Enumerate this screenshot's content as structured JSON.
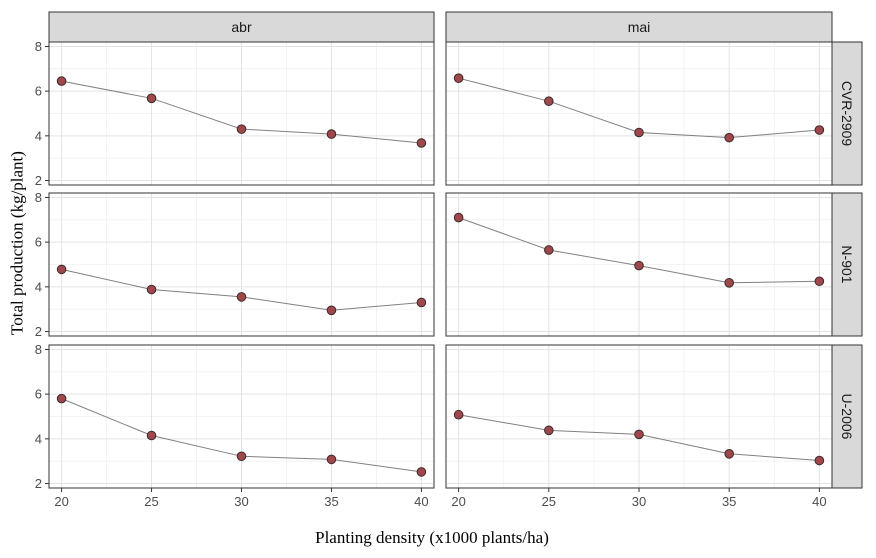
{
  "chart_data": {
    "type": "line",
    "xlabel": "Planting density (x1000 plants/ha)",
    "ylabel": "Total production (kg/plant)",
    "x": [
      20,
      25,
      30,
      35,
      40
    ],
    "x_ticks": [
      "20",
      "25",
      "30",
      "35",
      "40"
    ],
    "y_ticks": [
      "2",
      "4",
      "6",
      "8"
    ],
    "xlim": [
      19.3,
      40.7
    ],
    "ylim": [
      1.8,
      8.2
    ],
    "grid": true,
    "columns": [
      "abr",
      "mai"
    ],
    "rows": [
      "CVR-2909",
      "N-901",
      "U-2006"
    ],
    "colors": {
      "point": "#a0474c",
      "point_outline": "#3a2a2a",
      "line": "#808080",
      "strip": "#d9d9d9"
    },
    "panels": [
      {
        "row": "CVR-2909",
        "column": "abr",
        "values": [
          6.45,
          5.68,
          4.3,
          4.08,
          3.68
        ]
      },
      {
        "row": "CVR-2909",
        "column": "mai",
        "values": [
          6.58,
          5.55,
          4.15,
          3.92,
          4.26
        ]
      },
      {
        "row": "N-901",
        "column": "abr",
        "values": [
          4.78,
          3.88,
          3.55,
          2.95,
          3.3
        ]
      },
      {
        "row": "N-901",
        "column": "mai",
        "values": [
          7.1,
          5.65,
          4.95,
          4.18,
          4.25
        ]
      },
      {
        "row": "U-2006",
        "column": "abr",
        "values": [
          5.8,
          4.15,
          3.22,
          3.08,
          2.52
        ]
      },
      {
        "row": "U-2006",
        "column": "mai",
        "values": [
          5.08,
          4.38,
          4.2,
          3.33,
          3.03
        ]
      }
    ]
  }
}
